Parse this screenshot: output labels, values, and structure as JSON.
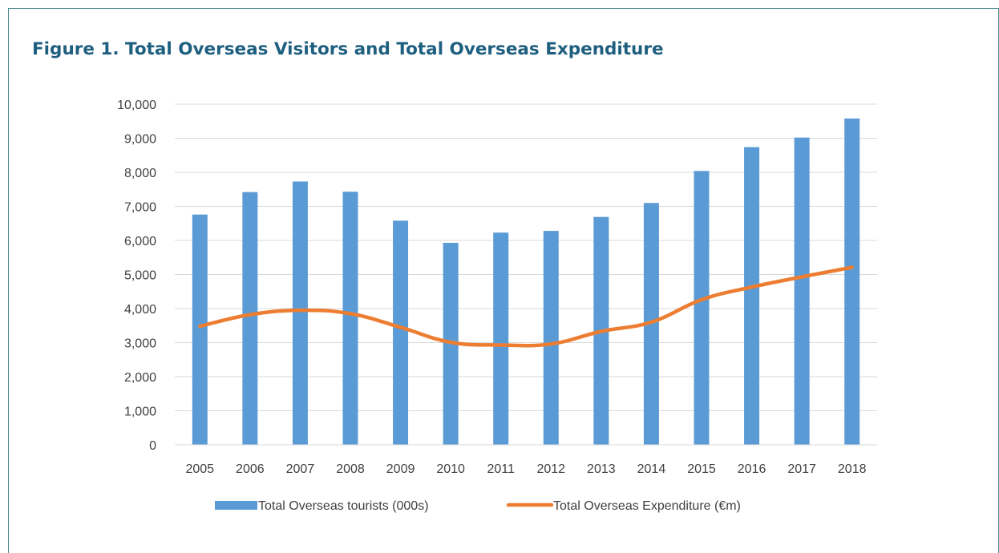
{
  "figure_title": "Figure 1. Total Overseas Visitors and Total Overseas Expenditure",
  "chart_data": {
    "type": "bar",
    "title": "",
    "xlabel": "",
    "ylabel": "",
    "categories": [
      "2005",
      "2006",
      "2007",
      "2008",
      "2009",
      "2010",
      "2011",
      "2012",
      "2013",
      "2014",
      "2015",
      "2016",
      "2017",
      "2018"
    ],
    "ylim": [
      0,
      10000
    ],
    "yticks": [
      0,
      1000,
      2000,
      3000,
      4000,
      5000,
      6000,
      7000,
      8000,
      9000,
      10000
    ],
    "ytick_labels": [
      "0",
      "1,000",
      "2,000",
      "3,000",
      "4,000",
      "5,000",
      "6,000",
      "7,000",
      "8,000",
      "9,000",
      "10,000"
    ],
    "grid": true,
    "legend_position": "bottom",
    "series": [
      {
        "name": "Total Overseas tourists (000s)",
        "type": "bar",
        "color": "#5b9bd5",
        "values": [
          6760,
          7420,
          7730,
          7430,
          6580,
          5930,
          6230,
          6280,
          6690,
          7100,
          8040,
          8740,
          9020,
          9580
        ]
      },
      {
        "name": "Total Overseas Expenditure (€m)",
        "type": "line",
        "color": "#ed7d31",
        "values": [
          3480,
          3820,
          3950,
          3850,
          3450,
          3010,
          2930,
          2960,
          3330,
          3600,
          4260,
          4630,
          4930,
          5210
        ]
      }
    ]
  }
}
